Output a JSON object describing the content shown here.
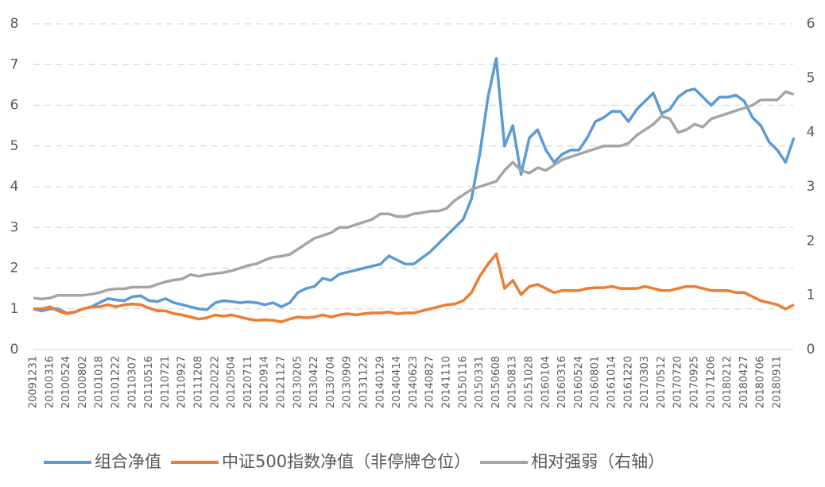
{
  "chart_data": {
    "type": "line",
    "categories": [
      "20091231",
      null,
      "20100316",
      null,
      "20100524",
      null,
      "20100802",
      null,
      "20101018",
      null,
      "20101222",
      null,
      "20110307",
      null,
      "20110516",
      null,
      "20110721",
      null,
      "20110927",
      null,
      "20111208",
      null,
      "20120222",
      null,
      "20120504",
      null,
      "20120711",
      null,
      "20120914",
      null,
      "20121127",
      null,
      "20130205",
      null,
      "20130422",
      null,
      "20130704",
      null,
      "20130909",
      null,
      "20131122",
      null,
      "20140129",
      null,
      "20140414",
      null,
      "20140623",
      null,
      "20140827",
      null,
      "20141110",
      null,
      "20150116",
      null,
      "20150331",
      null,
      "20150608",
      null,
      "20150813",
      null,
      "20151028",
      null,
      "20160104",
      null,
      "20160316",
      null,
      "20160524",
      null,
      "20160801",
      null,
      "20161014",
      null,
      "20161220",
      null,
      "20170303",
      null,
      "20170512",
      null,
      "20170720",
      null,
      "20170925",
      null,
      "20171206",
      null,
      "20180212",
      null,
      "20180427",
      null,
      "20180706",
      null,
      "20180911",
      null,
      null
    ],
    "series": [
      {
        "name": "组合净值",
        "color": "#5b9bd5",
        "values": [
          1.0,
          0.95,
          1.0,
          1.0,
          0.9,
          0.92,
          1.0,
          1.05,
          1.15,
          1.25,
          1.22,
          1.2,
          1.3,
          1.32,
          1.2,
          1.18,
          1.25,
          1.15,
          1.1,
          1.05,
          1.0,
          0.98,
          1.15,
          1.2,
          1.18,
          1.15,
          1.17,
          1.15,
          1.1,
          1.15,
          1.05,
          1.15,
          1.4,
          1.5,
          1.55,
          1.75,
          1.7,
          1.85,
          1.9,
          1.95,
          2.0,
          2.05,
          2.1,
          2.3,
          2.2,
          2.1,
          2.1,
          2.25,
          2.4,
          2.6,
          2.8,
          3.0,
          3.2,
          3.7,
          4.8,
          6.2,
          7.15,
          5.0,
          5.5,
          4.3,
          5.2,
          5.4,
          4.9,
          4.6,
          4.8,
          4.9,
          4.9,
          5.2,
          5.6,
          5.7,
          5.85,
          5.85,
          5.6,
          5.9,
          6.1,
          6.3,
          5.8,
          5.9,
          6.2,
          6.35,
          6.4,
          6.2,
          6.0,
          6.2,
          6.2,
          6.25,
          6.1,
          5.7,
          5.5,
          5.1,
          4.9,
          4.6,
          5.2
        ]
      },
      {
        "name": "中证500指数净值（非停牌仓位）",
        "color": "#ed7d31",
        "values": [
          1.0,
          1.0,
          1.05,
          0.95,
          0.88,
          0.92,
          1.0,
          1.05,
          1.05,
          1.1,
          1.05,
          1.1,
          1.12,
          1.1,
          1.02,
          0.95,
          0.95,
          0.88,
          0.85,
          0.8,
          0.75,
          0.78,
          0.85,
          0.82,
          0.85,
          0.8,
          0.75,
          0.72,
          0.73,
          0.72,
          0.68,
          0.75,
          0.8,
          0.78,
          0.8,
          0.85,
          0.8,
          0.85,
          0.88,
          0.85,
          0.88,
          0.9,
          0.9,
          0.92,
          0.88,
          0.9,
          0.9,
          0.95,
          1.0,
          1.05,
          1.1,
          1.12,
          1.2,
          1.4,
          1.8,
          2.1,
          2.35,
          1.5,
          1.7,
          1.35,
          1.55,
          1.6,
          1.5,
          1.4,
          1.45,
          1.45,
          1.45,
          1.5,
          1.52,
          1.52,
          1.55,
          1.5,
          1.5,
          1.5,
          1.55,
          1.5,
          1.45,
          1.45,
          1.5,
          1.55,
          1.55,
          1.5,
          1.45,
          1.45,
          1.45,
          1.4,
          1.4,
          1.3,
          1.2,
          1.15,
          1.1,
          1.0,
          1.1
        ]
      },
      {
        "name": "相对强弱（右轴）",
        "color": "#a5a5a5",
        "axis": "y2",
        "values": [
          0.95,
          0.93,
          0.95,
          1.0,
          1.0,
          1.0,
          1.0,
          1.02,
          1.05,
          1.1,
          1.12,
          1.12,
          1.15,
          1.15,
          1.15,
          1.2,
          1.25,
          1.28,
          1.3,
          1.38,
          1.35,
          1.38,
          1.4,
          1.42,
          1.45,
          1.5,
          1.55,
          1.58,
          1.65,
          1.7,
          1.72,
          1.75,
          1.85,
          1.95,
          2.05,
          2.1,
          2.15,
          2.25,
          2.25,
          2.3,
          2.35,
          2.4,
          2.5,
          2.5,
          2.45,
          2.45,
          2.5,
          2.52,
          2.55,
          2.55,
          2.6,
          2.75,
          2.85,
          2.95,
          3.0,
          3.05,
          3.1,
          3.3,
          3.45,
          3.3,
          3.25,
          3.35,
          3.3,
          3.4,
          3.5,
          3.55,
          3.6,
          3.65,
          3.7,
          3.75,
          3.75,
          3.75,
          3.8,
          3.95,
          4.05,
          4.15,
          4.3,
          4.25,
          4.0,
          4.05,
          4.15,
          4.1,
          4.25,
          4.3,
          4.35,
          4.4,
          4.45,
          4.5,
          4.6,
          4.6,
          4.6,
          4.75,
          4.7
        ]
      }
    ],
    "ylim": [
      0,
      8
    ],
    "yticks": [
      0,
      1,
      2,
      3,
      4,
      5,
      6,
      7,
      8
    ],
    "y2lim": [
      0,
      6
    ],
    "y2ticks": [
      0,
      1,
      2,
      3,
      4,
      5,
      6
    ],
    "grid": true,
    "legend": "bottom"
  }
}
